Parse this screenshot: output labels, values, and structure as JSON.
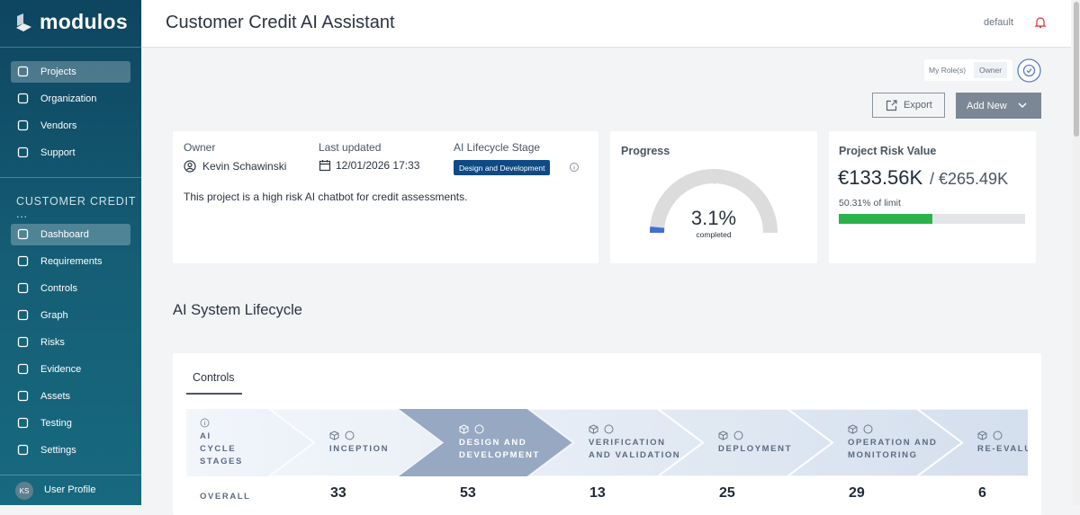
{
  "sidebar": {
    "logo": "modulos",
    "nav": [
      "Projects",
      "Organization",
      "Vendors",
      "Support"
    ],
    "project_section": "CUSTOMER CREDIT ...",
    "project_nav": [
      "Dashboard",
      "Requirements",
      "Controls",
      "Graph",
      "Risks",
      "Evidence",
      "Assets",
      "Testing",
      "Settings"
    ],
    "user": {
      "initials": "KS",
      "label": "User Profile"
    }
  },
  "header": {
    "title": "Customer Credit AI Assistant",
    "workspace": "default"
  },
  "role": {
    "label": "My Role(s)",
    "value": "Owner"
  },
  "actions": [
    "Export",
    "Add New"
  ],
  "overview": {
    "owner_label": "Owner",
    "owner": "Kevin Schawinski",
    "updated_label": "Last updated",
    "updated": "12/01/2026 17:33",
    "stage_label": "AI Lifecycle Stage",
    "stage": "Design and Development",
    "description": "This project is a high risk AI chatbot for credit assessments."
  },
  "progress": {
    "title": "Progress",
    "value": 3.1,
    "value_label": "3.1%",
    "caption": "completed"
  },
  "risk": {
    "title": "Project Risk Value",
    "value_label": "€133.56K",
    "limit_label": "/ €265.49K",
    "percent": 50.31,
    "percent_label": "50.31% of limit"
  },
  "lifecycle": {
    "title": "AI System Lifecycle",
    "tab": "Controls",
    "row_header": "AI CYCLE STAGES",
    "stages": [
      "INCEPTION",
      "DESIGN AND DEVELOPMENT",
      "VERIFICATION AND VALIDATION",
      "DEPLOYMENT",
      "OPERATION AND MONITORING",
      "RE-EVALUATION"
    ],
    "overall_label": "OVERALL",
    "overall": [
      33,
      53,
      13,
      25,
      29,
      6
    ]
  }
}
